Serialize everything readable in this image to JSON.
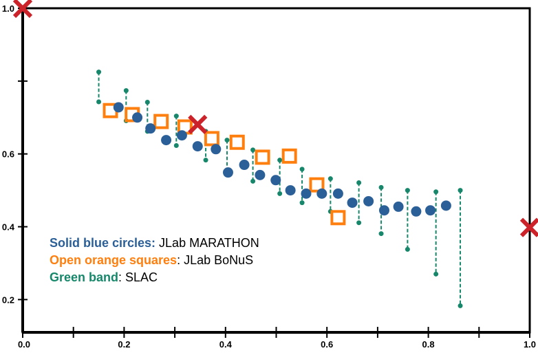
{
  "chart_data": {
    "type": "scatter",
    "xlim": [
      0.0,
      1.0
    ],
    "ylim": [
      0.11,
      1.0
    ],
    "grid": false,
    "legend_placement": "lower-left",
    "x_ticks": [
      {
        "value": 0.0,
        "label": "0.0"
      },
      {
        "value": 0.1,
        "label": ""
      },
      {
        "value": 0.2,
        "label": "0.2"
      },
      {
        "value": 0.3,
        "label": ""
      },
      {
        "value": 0.4,
        "label": "0.4"
      },
      {
        "value": 0.5,
        "label": ""
      },
      {
        "value": 0.6,
        "label": "0.6"
      },
      {
        "value": 0.7,
        "label": ""
      },
      {
        "value": 0.8,
        "label": "0.8"
      },
      {
        "value": 0.9,
        "label": ""
      },
      {
        "value": 1.0,
        "label": "1.0"
      }
    ],
    "y_ticks": [
      {
        "value": 0.2,
        "label": "0.2"
      },
      {
        "value": 0.4,
        "label": "0.4"
      },
      {
        "value": 0.6,
        "label": "0.6"
      },
      {
        "value": 0.8,
        "label": ""
      },
      {
        "value": 1.0,
        "label": "1.0"
      }
    ],
    "colors": {
      "blue": "#2b5f98",
      "orange": "#ff7f0e",
      "green": "#16876a",
      "red": "#cc2229",
      "axis": "#000000"
    },
    "series": [
      {
        "name": "JLab MARATHON",
        "marker": "filled-circle",
        "color": "#2b5f98",
        "x": [
          0.189,
          0.226,
          0.252,
          0.283,
          0.314,
          0.345,
          0.381,
          0.405,
          0.437,
          0.468,
          0.499,
          0.528,
          0.559,
          0.59,
          0.622,
          0.65,
          0.682,
          0.713,
          0.741,
          0.776,
          0.804,
          0.835
        ],
        "y": [
          0.728,
          0.7,
          0.67,
          0.638,
          0.651,
          0.621,
          0.613,
          0.549,
          0.57,
          0.542,
          0.528,
          0.5,
          0.491,
          0.491,
          0.491,
          0.466,
          0.47,
          0.445,
          0.455,
          0.442,
          0.445,
          0.458
        ]
      },
      {
        "name": "JLab BoNuS",
        "marker": "open-square",
        "color": "#ff7f0e",
        "x": [
          0.173,
          0.216,
          0.273,
          0.32,
          0.373,
          0.423,
          0.473,
          0.526,
          0.58,
          0.622
        ],
        "y": [
          0.719,
          0.708,
          0.689,
          0.674,
          0.642,
          0.632,
          0.591,
          0.594,
          0.515,
          0.425
        ]
      },
      {
        "name": "SLAC",
        "marker": "dashed-band",
        "color": "#16876a",
        "x": [
          0.15,
          0.204,
          0.246,
          0.303,
          0.361,
          0.403,
          0.454,
          0.507,
          0.551,
          0.607,
          0.663,
          0.707,
          0.759,
          0.815,
          0.863
        ],
        "high": [
          0.825,
          0.774,
          0.742,
          0.704,
          0.662,
          0.638,
          0.611,
          0.583,
          0.558,
          0.532,
          0.521,
          0.508,
          0.5,
          0.496,
          0.5
        ],
        "low": [
          0.743,
          0.691,
          0.662,
          0.623,
          0.583,
          0.549,
          0.525,
          0.491,
          0.466,
          0.442,
          0.411,
          0.381,
          0.338,
          0.27,
          0.183
        ]
      },
      {
        "marker": "red-x",
        "color": "#cc2229",
        "x": [
          0.0,
          0.345,
          1.0
        ],
        "y": [
          1.0,
          0.681,
          0.398
        ]
      }
    ],
    "legend": [
      {
        "key": "Solid blue circles:",
        "value": " JLab MARATHON",
        "color": "#2b5f98"
      },
      {
        "key": "Open orange squares",
        "value": ": JLab BoNuS",
        "color": "#ff7f0e"
      },
      {
        "key": "Green band",
        "value": ": SLAC",
        "color": "#16876a"
      }
    ]
  }
}
